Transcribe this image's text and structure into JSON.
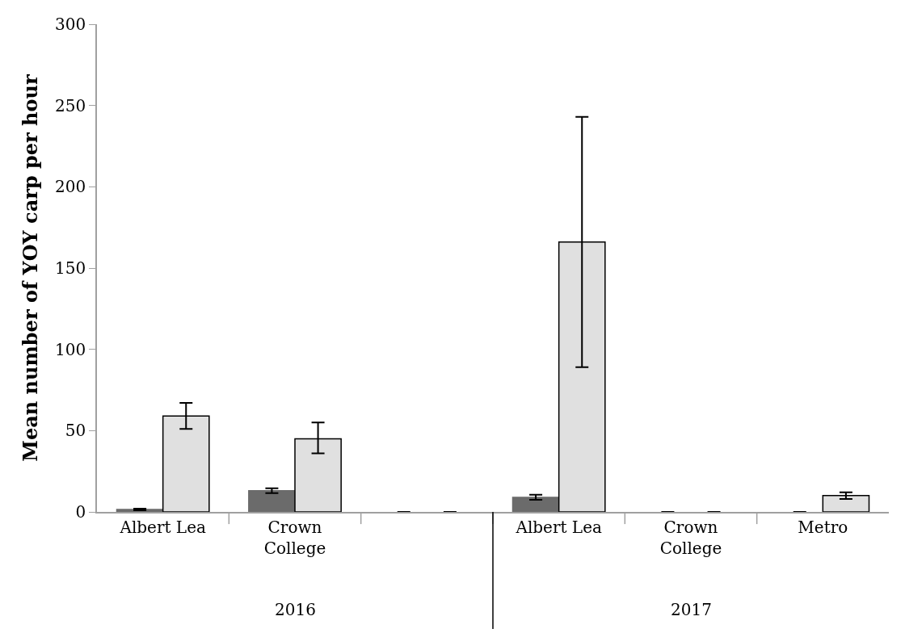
{
  "chart_data": {
    "type": "bar",
    "ylabel": "Mean number of YOY carp per hour",
    "categories": [
      "Albert Lea",
      "Crown College",
      null,
      "Albert Lea",
      "Crown College",
      "Metro"
    ],
    "series": [
      {
        "color": "#6b6b6b",
        "values": [
          1.5,
          13,
          0,
          9,
          0,
          0
        ],
        "errors": [
          [
            1,
            2
          ],
          [
            11.5,
            14.5
          ],
          null,
          [
            7.5,
            10.5
          ],
          null,
          null
        ]
      },
      {
        "color": "#e0e0e0",
        "values": [
          59,
          45,
          0,
          166,
          0,
          10
        ],
        "errors": [
          [
            51,
            67
          ],
          [
            36,
            55
          ],
          null,
          [
            89,
            243
          ],
          null,
          [
            8,
            12
          ]
        ]
      }
    ],
    "ylim": [
      0,
      300
    ],
    "yticks": [
      0,
      50,
      100,
      150,
      200,
      250,
      300
    ],
    "annotations": [
      "2016",
      "2017"
    ]
  }
}
